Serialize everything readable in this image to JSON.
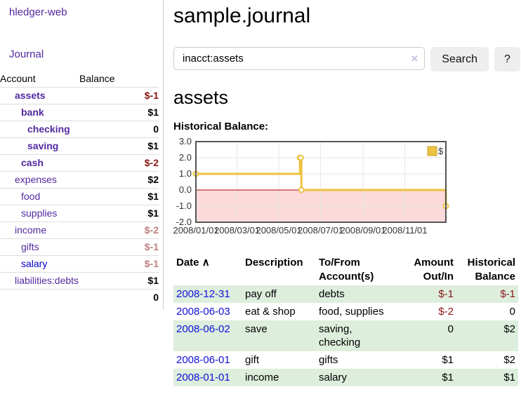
{
  "app": {
    "brand": "hledger-web",
    "nav_journal": "Journal"
  },
  "sidebar": {
    "account_header": "Account",
    "balance_header": "Balance",
    "accounts": [
      {
        "name": "assets",
        "depth": 1,
        "balance": "$-1",
        "matched": true,
        "neg": "strong",
        "blue": false
      },
      {
        "name": "bank",
        "depth": 2,
        "balance": "$1",
        "matched": true,
        "neg": "none",
        "blue": false
      },
      {
        "name": "checking",
        "depth": 3,
        "balance": "0",
        "matched": true,
        "neg": "none",
        "blue": false
      },
      {
        "name": "saving",
        "depth": 3,
        "balance": "$1",
        "matched": true,
        "neg": "none",
        "blue": false
      },
      {
        "name": "cash",
        "depth": 2,
        "balance": "$-2",
        "matched": true,
        "neg": "strong",
        "blue": false
      },
      {
        "name": "expenses",
        "depth": 1,
        "balance": "$2",
        "matched": false,
        "neg": "none",
        "blue": false
      },
      {
        "name": "food",
        "depth": 2,
        "balance": "$1",
        "matched": false,
        "neg": "none",
        "blue": false
      },
      {
        "name": "supplies",
        "depth": 2,
        "balance": "$1",
        "matched": false,
        "neg": "none",
        "blue": false
      },
      {
        "name": "income",
        "depth": 1,
        "balance": "$-2",
        "matched": false,
        "neg": "faded",
        "blue": false
      },
      {
        "name": "gifts",
        "depth": 2,
        "balance": "$-1",
        "matched": false,
        "neg": "faded",
        "blue": false
      },
      {
        "name": "salary",
        "depth": 2,
        "balance": "$-1",
        "matched": false,
        "neg": "faded",
        "blue": true
      },
      {
        "name": "liabilities:debts",
        "depth": 1,
        "balance": "$1",
        "matched": false,
        "neg": "none",
        "blue": false
      }
    ],
    "total": "0"
  },
  "header": {
    "title": "sample.journal"
  },
  "search": {
    "value": "inacct:assets",
    "clear_icon": "×",
    "button_label": "Search",
    "help_label": "?"
  },
  "account_page": {
    "heading": "assets",
    "chart_label": "Historical Balance:"
  },
  "chart_data": {
    "type": "line",
    "title": "Historical Balance",
    "legend": {
      "label": "$",
      "position": "top-right"
    },
    "line_color": "#edc240",
    "legend_border": "#c5a232",
    "negative_fill": "#fcdada",
    "zero_line_color": "#aa0000",
    "grid_color": "#e6e6e6",
    "border_color": "#545454",
    "ylim": [
      -2,
      3
    ],
    "xrange": [
      "2008-01-01",
      "2008-12-31"
    ],
    "yticks": [
      {
        "value": 3,
        "label": "3.0"
      },
      {
        "value": 2,
        "label": "2.0"
      },
      {
        "value": 1,
        "label": "1.0"
      },
      {
        "value": 0,
        "label": "0.0"
      },
      {
        "value": -1,
        "label": "-1.0"
      },
      {
        "value": -2,
        "label": "-2.0"
      }
    ],
    "xticks": [
      {
        "date": "2008-01-01",
        "label": "2008/01/01"
      },
      {
        "date": "2008-03-01",
        "label": "2008/03/01"
      },
      {
        "date": "2008-05-01",
        "label": "2008/05/01"
      },
      {
        "date": "2008-07-01",
        "label": "2008/07/01"
      },
      {
        "date": "2008-09-01",
        "label": "2008/09/01"
      },
      {
        "date": "2008-11-01",
        "label": "2008/11/01"
      }
    ],
    "series": [
      {
        "name": "$",
        "step": true,
        "points": [
          {
            "date": "2008-01-01",
            "value": 1
          },
          {
            "date": "2008-06-01",
            "value": 2
          },
          {
            "date": "2008-06-02",
            "value": 2
          },
          {
            "date": "2008-06-03",
            "value": 0
          },
          {
            "date": "2008-12-31",
            "value": -1
          }
        ]
      }
    ]
  },
  "register": {
    "headers": {
      "date": "Date",
      "sort_icon": "∧",
      "description": "Description",
      "account": "To/From Account(s)",
      "amount": "Amount Out/In",
      "balance": "Historical Balance"
    },
    "rows": [
      {
        "date": "2008-12-31",
        "description": "pay off",
        "accounts": "debts",
        "amount": "$-1",
        "amount_neg": true,
        "balance": "$-1",
        "balance_neg": true
      },
      {
        "date": "2008-06-03",
        "description": "eat & shop",
        "accounts": "food, supplies",
        "amount": "$-2",
        "amount_neg": true,
        "balance": "0",
        "balance_neg": false
      },
      {
        "date": "2008-06-02",
        "description": "save",
        "accounts": "saving, checking",
        "amount": "0",
        "amount_neg": false,
        "balance": "$2",
        "balance_neg": false
      },
      {
        "date": "2008-06-01",
        "description": "gift",
        "accounts": "gifts",
        "amount": "$1",
        "amount_neg": false,
        "balance": "$2",
        "balance_neg": false
      },
      {
        "date": "2008-01-01",
        "description": "income",
        "accounts": "salary",
        "amount": "$1",
        "amount_neg": false,
        "balance": "$1",
        "balance_neg": false
      }
    ]
  }
}
